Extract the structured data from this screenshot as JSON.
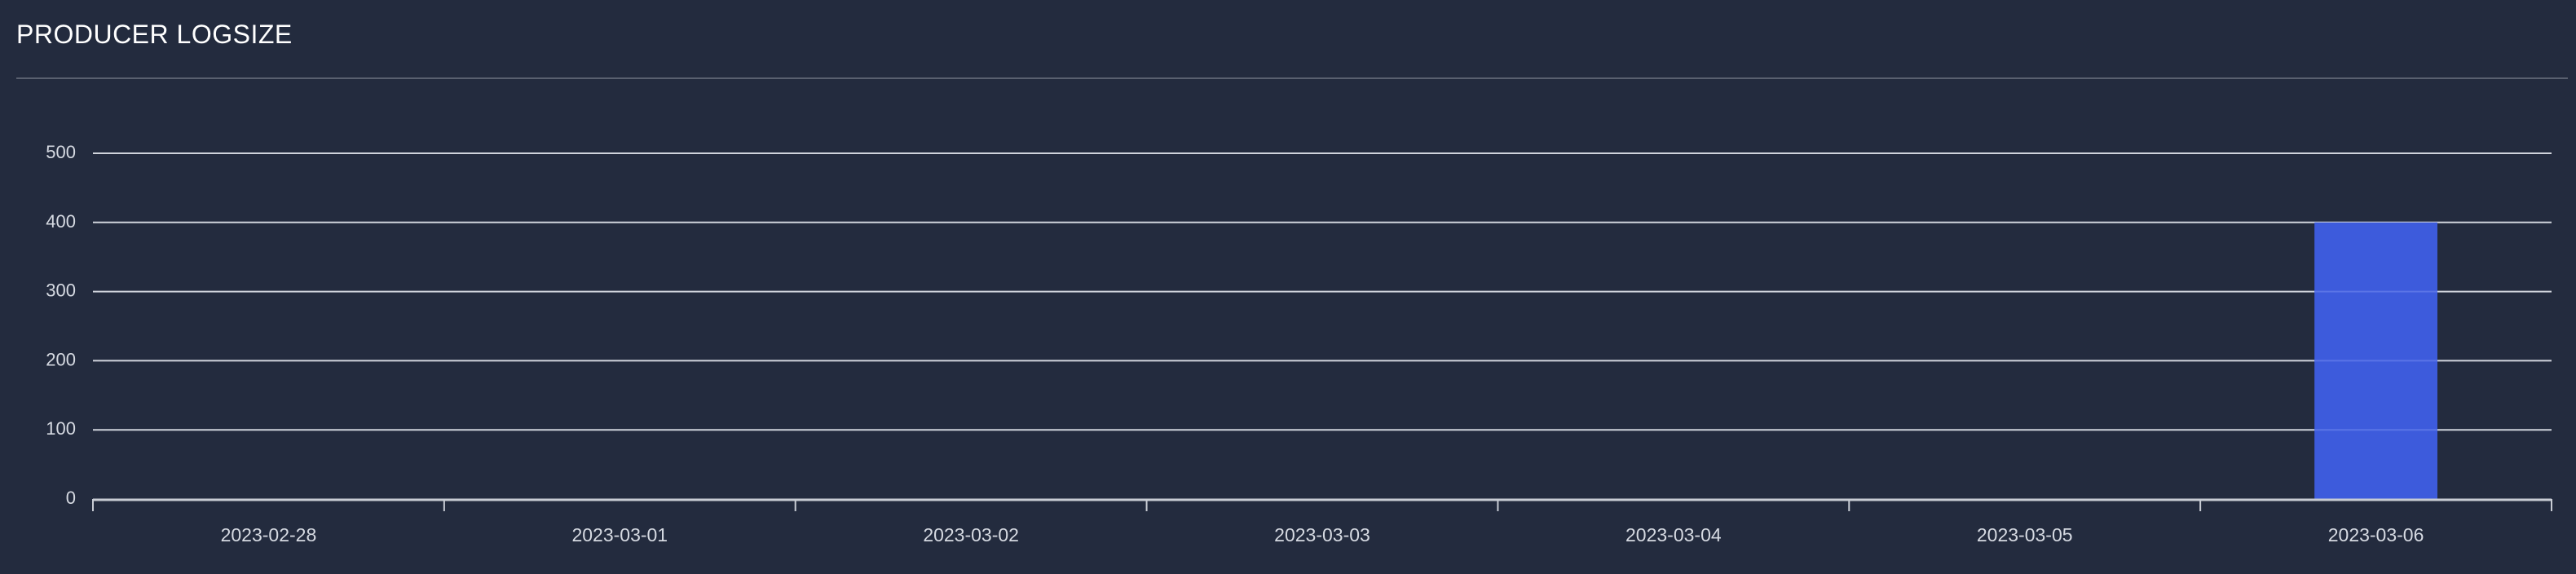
{
  "panel": {
    "title": "PRODUCER LOGSIZE"
  },
  "chart_data": {
    "type": "bar",
    "title": "PRODUCER LOGSIZE",
    "categories": [
      "2023-02-28",
      "2023-03-01",
      "2023-03-02",
      "2023-03-03",
      "2023-03-04",
      "2023-03-05",
      "2023-03-06"
    ],
    "values": [
      0,
      0,
      0,
      0,
      0,
      0,
      400
    ],
    "yticks": [
      0,
      100,
      200,
      300,
      400,
      500
    ],
    "ylim": [
      0,
      500
    ],
    "xlabel": "",
    "ylabel": "",
    "grid": true,
    "legend": "none",
    "colors": {
      "bar": "#3d5bdc",
      "grid": "#d0d4dc",
      "axis": "#c8ccd4",
      "background": "#232b3e"
    }
  }
}
